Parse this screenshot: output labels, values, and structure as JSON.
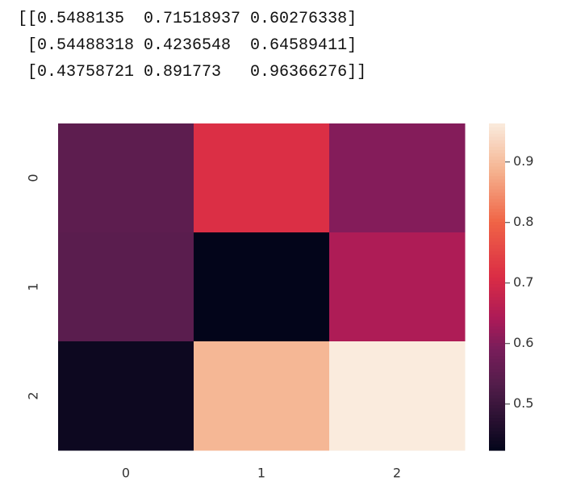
{
  "output_text": [
    "[[0.5488135  0.71518937 0.60276338]",
    " [0.54488318 0.4236548  0.64589411]",
    " [0.43758721 0.891773   0.96366276]]"
  ],
  "chart_data": {
    "type": "heatmap",
    "x_categories": [
      0,
      1,
      2
    ],
    "y_categories": [
      0,
      1,
      2
    ],
    "values": [
      [
        0.5488135,
        0.71518937,
        0.60276338
      ],
      [
        0.54488318,
        0.4236548,
        0.64589411
      ],
      [
        0.43758721,
        0.891773,
        0.96366276
      ]
    ],
    "colormap": "rocket",
    "zlim": [
      0.4236548,
      0.96366276
    ],
    "zticks": [
      0.5,
      0.6,
      0.7,
      0.8,
      0.9
    ]
  }
}
